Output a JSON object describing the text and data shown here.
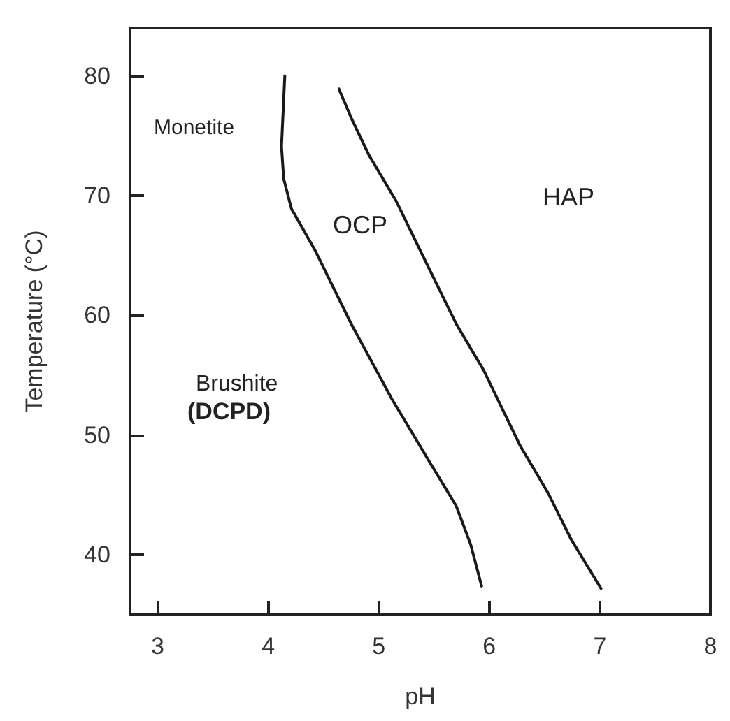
{
  "chart_data": {
    "type": "line",
    "xlabel": "pH",
    "ylabel": "Temperature (°C)",
    "xlim": [
      2.75,
      8
    ],
    "xticks": [
      3,
      4,
      5,
      6,
      7,
      8
    ],
    "ylim": [
      35,
      84
    ],
    "yticks": [
      40,
      50,
      60,
      70,
      80
    ],
    "grid": false,
    "marker": "none",
    "line_style": "solid",
    "series": [
      {
        "color": "#1a1a1a",
        "x": [
          4.15,
          4.12,
          4.14,
          4.21,
          4.42,
          4.75,
          5.12,
          5.47,
          5.7,
          5.83,
          5.93
        ],
        "values": [
          80,
          74.1,
          71.4,
          68.9,
          65.5,
          59.3,
          53,
          47.6,
          44.1,
          40.9,
          37.4
        ]
      },
      {
        "color": "#1a1a1a",
        "x": [
          4.64,
          4.75,
          4.91,
          5.16,
          5.45,
          5.7,
          5.95,
          6.28,
          6.53,
          6.74,
          7.01
        ],
        "values": [
          78.9,
          76.5,
          73.4,
          69.5,
          64,
          59.3,
          55.4,
          49.1,
          45.2,
          41.3,
          37.2
        ]
      }
    ],
    "annotations": [
      "Monetite",
      "OCP",
      "HAP",
      "Brushite",
      "(DCPD)"
    ]
  }
}
